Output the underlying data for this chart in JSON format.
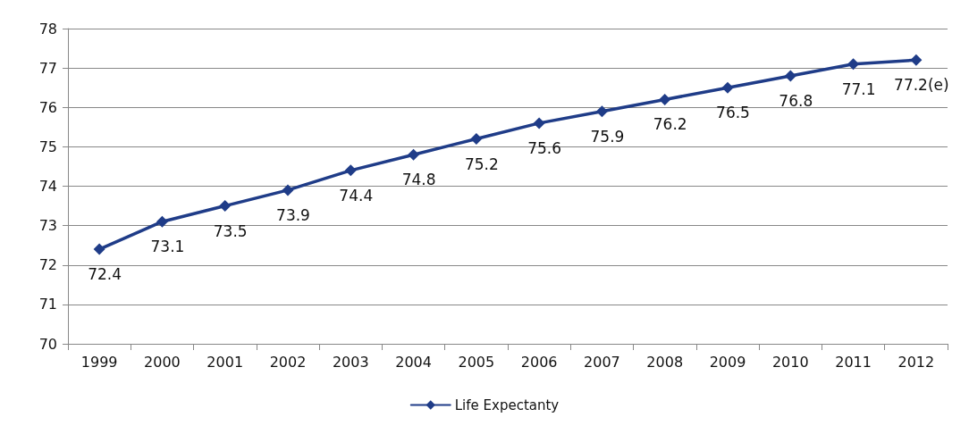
{
  "chart_data": {
    "type": "line",
    "categories": [
      "1999",
      "2000",
      "2001",
      "2002",
      "2003",
      "2004",
      "2005",
      "2006",
      "2007",
      "2008",
      "2009",
      "2010",
      "2011",
      "2012"
    ],
    "series": [
      {
        "name": "Life Expectanty",
        "color": "#1f3c88",
        "values": [
          72.4,
          73.1,
          73.5,
          73.9,
          74.4,
          74.8,
          75.2,
          75.6,
          75.9,
          76.2,
          76.5,
          76.8,
          77.1,
          77.2
        ],
        "value_labels": [
          "72.4",
          "73.1",
          "73.5",
          "73.9",
          "74.4",
          "74.8",
          "75.2",
          "75.6",
          "75.9",
          "76.2",
          "76.5",
          "76.8",
          "77.1",
          "77.2(e)"
        ]
      }
    ],
    "ylim": [
      70,
      78
    ],
    "yticks": [
      70,
      71,
      72,
      73,
      74,
      75,
      76,
      77,
      78
    ],
    "grid": "y",
    "legend": "bottom",
    "marker": "diamond",
    "line_style": "solid"
  }
}
